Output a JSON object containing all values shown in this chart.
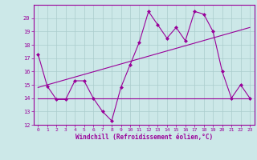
{
  "xlabel": "Windchill (Refroidissement éolien,°C)",
  "bg_color": "#cce8e8",
  "line_color": "#990099",
  "grid_color": "#aacccc",
  "xlim": [
    -0.5,
    23.5
  ],
  "ylim": [
    12,
    21
  ],
  "yticks": [
    12,
    13,
    14,
    15,
    16,
    17,
    18,
    19,
    20
  ],
  "xticks": [
    0,
    1,
    2,
    3,
    4,
    5,
    6,
    7,
    8,
    9,
    10,
    11,
    12,
    13,
    14,
    15,
    16,
    17,
    18,
    19,
    20,
    21,
    22,
    23
  ],
  "line1_x": [
    0,
    1,
    2,
    3,
    4,
    5,
    6,
    7,
    8,
    9,
    10,
    11,
    12,
    13,
    14,
    15,
    16,
    17,
    18,
    19,
    20,
    21,
    22,
    23
  ],
  "line1_y": [
    17.3,
    14.9,
    13.9,
    13.9,
    15.3,
    15.3,
    14.0,
    13.0,
    12.3,
    14.8,
    16.5,
    18.2,
    20.5,
    19.5,
    18.5,
    19.3,
    18.3,
    20.5,
    20.3,
    19.0,
    16.0,
    14.0,
    15.0,
    14.0
  ],
  "line2_x": [
    0,
    23
  ],
  "line2_y": [
    14.0,
    14.0
  ],
  "line3_x": [
    0,
    23
  ],
  "line3_y": [
    14.8,
    19.3
  ],
  "marker_x": [
    0,
    1,
    2,
    3,
    4,
    5,
    6,
    7,
    8,
    9,
    10,
    11,
    12,
    13,
    14,
    15,
    16,
    17,
    18,
    19,
    20,
    21,
    22,
    23
  ],
  "marker_y": [
    17.3,
    14.9,
    13.9,
    13.9,
    15.3,
    15.3,
    14.0,
    13.0,
    12.3,
    14.8,
    16.5,
    18.2,
    20.5,
    19.5,
    18.5,
    19.3,
    18.3,
    20.5,
    20.3,
    19.0,
    16.0,
    14.0,
    15.0,
    14.0
  ]
}
